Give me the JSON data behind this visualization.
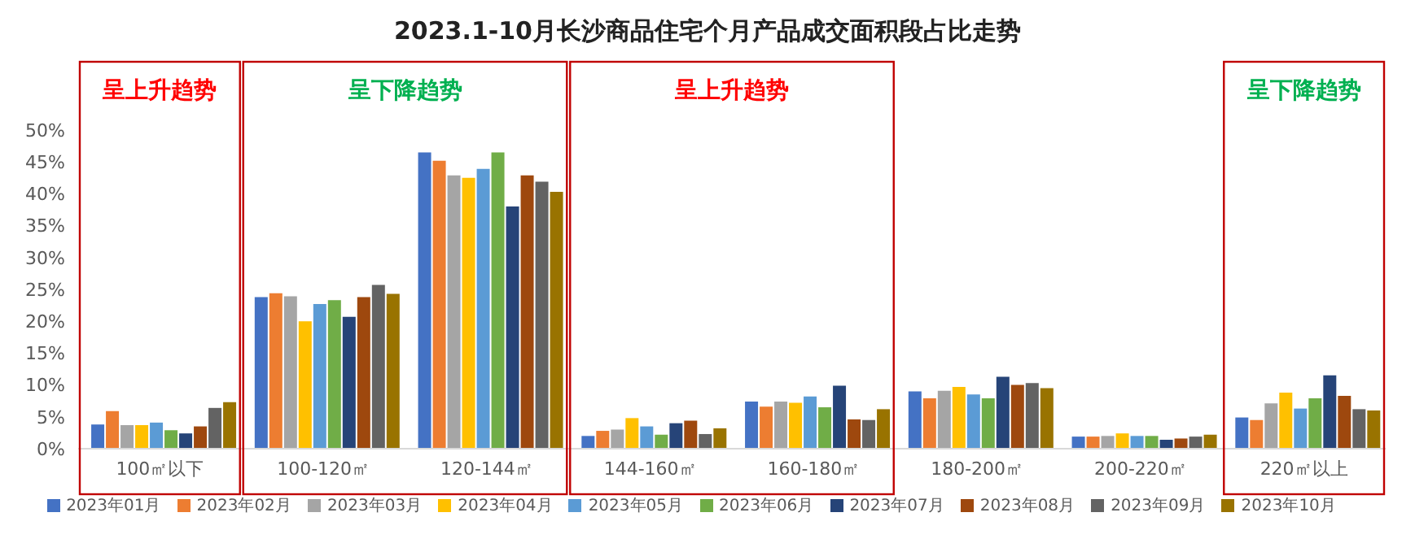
{
  "chart_data": {
    "type": "bar",
    "title": "2023.1-10月长沙商品住宅个月产品成交面积段占比走势",
    "categories": [
      "100㎡以下",
      "100-120㎡",
      "120-144㎡",
      "144-160㎡",
      "160-180㎡",
      "180-200㎡",
      "200-220㎡",
      "220㎡以上"
    ],
    "series": [
      {
        "name": "2023年01月",
        "color": "#4472c4",
        "values": [
          3.8,
          23.8,
          46.5,
          2.0,
          7.4,
          9.0,
          1.9,
          4.9
        ]
      },
      {
        "name": "2023年02月",
        "color": "#ed7d31",
        "values": [
          5.9,
          24.4,
          45.2,
          2.8,
          6.6,
          7.9,
          1.9,
          4.5
        ]
      },
      {
        "name": "2023年03月",
        "color": "#a5a5a5",
        "values": [
          3.7,
          23.9,
          42.9,
          3.0,
          7.4,
          9.1,
          2.0,
          7.1
        ]
      },
      {
        "name": "2023年04月",
        "color": "#ffc000",
        "values": [
          3.7,
          20.0,
          42.5,
          4.8,
          7.2,
          9.7,
          2.4,
          8.8
        ]
      },
      {
        "name": "2023年05月",
        "color": "#5b9bd5",
        "values": [
          4.1,
          22.7,
          43.9,
          3.5,
          8.2,
          8.5,
          2.0,
          6.3
        ]
      },
      {
        "name": "2023年06月",
        "color": "#70ad47",
        "values": [
          2.9,
          23.3,
          46.5,
          2.2,
          6.5,
          7.9,
          2.0,
          7.9
        ]
      },
      {
        "name": "2023年07月",
        "color": "#264478",
        "values": [
          2.4,
          20.7,
          38.0,
          4.0,
          9.9,
          11.3,
          1.4,
          11.5
        ]
      },
      {
        "name": "2023年08月",
        "color": "#9e480e",
        "values": [
          3.5,
          23.8,
          42.9,
          4.4,
          4.6,
          10.0,
          1.6,
          8.3
        ]
      },
      {
        "name": "2023年09月",
        "color": "#636363",
        "values": [
          6.4,
          25.7,
          41.9,
          2.3,
          4.5,
          10.3,
          1.9,
          6.2
        ]
      },
      {
        "name": "2023年10月",
        "color": "#997300",
        "values": [
          7.3,
          24.3,
          40.3,
          3.2,
          6.2,
          9.5,
          2.2,
          6.0
        ]
      }
    ],
    "ylim": [
      0,
      50
    ],
    "yticks": [
      {
        "value": 0,
        "label": "0%"
      },
      {
        "value": 5,
        "label": "5%"
      },
      {
        "value": 10,
        "label": "10%"
      },
      {
        "value": 15,
        "label": "15%"
      },
      {
        "value": 20,
        "label": "20%"
      },
      {
        "value": 25,
        "label": "25%"
      },
      {
        "value": 30,
        "label": "30%"
      },
      {
        "value": 35,
        "label": "35%"
      },
      {
        "value": 40,
        "label": "40%"
      },
      {
        "value": 45,
        "label": "45%"
      },
      {
        "value": 50,
        "label": "50%"
      }
    ],
    "annotations": [
      "呈上升趋势",
      "呈下降趋势",
      "呈上升趋势",
      "呈下降趋势"
    ],
    "grid": false,
    "legend": "bottom"
  }
}
